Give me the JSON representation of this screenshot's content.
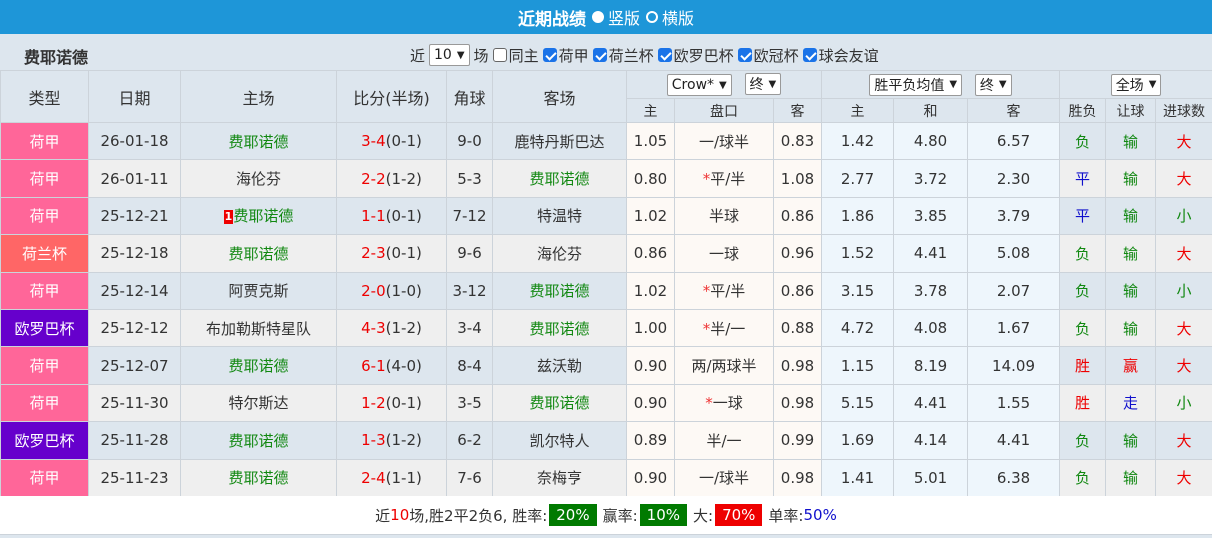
{
  "header": {
    "title": "近期战绩",
    "view_vertical": "竖版",
    "view_horizontal": "横版",
    "vertical_selected": true
  },
  "filter": {
    "team": "费耶诺德",
    "prefix": "近",
    "count": "10",
    "suffix": "场",
    "same_home": {
      "label": "同主",
      "checked": false
    },
    "competitions": [
      {
        "label": "荷甲",
        "checked": true
      },
      {
        "label": "荷兰杯",
        "checked": true
      },
      {
        "label": "欧罗巴杯",
        "checked": true
      },
      {
        "label": "欧冠杯",
        "checked": true
      },
      {
        "label": "球会友谊",
        "checked": true
      }
    ]
  },
  "columns": {
    "type": "类型",
    "date": "日期",
    "home": "主场",
    "score": "比分(半场)",
    "corners": "角球",
    "away": "客场",
    "asian_company": "Crow*",
    "asian_stage": "终",
    "euro_company": "胜平负均值",
    "euro_stage": "终",
    "scope": "全场",
    "asian_home": "主",
    "handicap": "盘口",
    "asian_away": "客",
    "euro_home": "主",
    "euro_draw": "和",
    "euro_away": "客",
    "result": "胜负",
    "ah_result": "让球",
    "goals": "进球数"
  },
  "colors": {
    "荷甲": "#ff6699",
    "荷兰杯": "#ff6666",
    "欧罗巴杯": "#6600cc",
    "team_highlight": "#118811",
    "score": "#ee0000"
  },
  "rows": [
    {
      "type": "荷甲",
      "date": "26-01-18",
      "home": "费耶诺德",
      "score": "3-4",
      "half": "(0-1)",
      "corners": "9-0",
      "away": "鹿特丹斯巴达",
      "ah": "1.05",
      "hc": "一/球半",
      "aa": "0.83",
      "eh": "1.42",
      "ed": "4.80",
      "ea": "6.57",
      "res": "负",
      "ahr": "输",
      "goals": "大",
      "team_side": "home"
    },
    {
      "type": "荷甲",
      "date": "26-01-11",
      "home": "海伦芬",
      "score": "2-2",
      "half": "(1-2)",
      "corners": "5-3",
      "away": "费耶诺德",
      "ah": "0.80",
      "hc": "平/半",
      "hc_star": true,
      "aa": "1.08",
      "eh": "2.77",
      "ed": "3.72",
      "ea": "2.30",
      "res": "平",
      "ahr": "输",
      "goals": "大",
      "team_side": "away"
    },
    {
      "type": "荷甲",
      "date": "25-12-21",
      "home": "费耶诺德",
      "home_rank": "1",
      "score": "1-1",
      "half": "(0-1)",
      "corners": "7-12",
      "away": "特温特",
      "ah": "1.02",
      "hc": "半球",
      "aa": "0.86",
      "eh": "1.86",
      "ed": "3.85",
      "ea": "3.79",
      "res": "平",
      "ahr": "输",
      "goals": "小",
      "team_side": "home"
    },
    {
      "type": "荷兰杯",
      "date": "25-12-18",
      "home": "费耶诺德",
      "score": "2-3",
      "half": "(0-1)",
      "corners": "9-6",
      "away": "海伦芬",
      "ah": "0.86",
      "hc": "一球",
      "aa": "0.96",
      "eh": "1.52",
      "ed": "4.41",
      "ea": "5.08",
      "res": "负",
      "ahr": "输",
      "goals": "大",
      "team_side": "home"
    },
    {
      "type": "荷甲",
      "date": "25-12-14",
      "home": "阿贾克斯",
      "score": "2-0",
      "half": "(1-0)",
      "corners": "3-12",
      "away": "费耶诺德",
      "ah": "1.02",
      "hc": "平/半",
      "hc_star": true,
      "aa": "0.86",
      "eh": "3.15",
      "ed": "3.78",
      "ea": "2.07",
      "res": "负",
      "ahr": "输",
      "goals": "小",
      "team_side": "away"
    },
    {
      "type": "欧罗巴杯",
      "date": "25-12-12",
      "home": "布加勒斯特星队",
      "score": "4-3",
      "half": "(1-2)",
      "corners": "3-4",
      "away": "费耶诺德",
      "ah": "1.00",
      "hc": "半/一",
      "hc_star": true,
      "aa": "0.88",
      "eh": "4.72",
      "ed": "4.08",
      "ea": "1.67",
      "res": "负",
      "ahr": "输",
      "goals": "大",
      "team_side": "away"
    },
    {
      "type": "荷甲",
      "date": "25-12-07",
      "home": "费耶诺德",
      "score": "6-1",
      "half": "(4-0)",
      "corners": "8-4",
      "away": "兹沃勒",
      "ah": "0.90",
      "hc": "两/两球半",
      "aa": "0.98",
      "eh": "1.15",
      "ed": "8.19",
      "ea": "14.09",
      "res": "胜",
      "ahr": "赢",
      "goals": "大",
      "team_side": "home"
    },
    {
      "type": "荷甲",
      "date": "25-11-30",
      "home": "特尔斯达",
      "score": "1-2",
      "half": "(0-1)",
      "corners": "3-5",
      "away": "费耶诺德",
      "ah": "0.90",
      "hc": "一球",
      "hc_star": true,
      "aa": "0.98",
      "eh": "5.15",
      "ed": "4.41",
      "ea": "1.55",
      "res": "胜",
      "ahr": "走",
      "goals": "小",
      "team_side": "away"
    },
    {
      "type": "欧罗巴杯",
      "date": "25-11-28",
      "home": "费耶诺德",
      "score": "1-3",
      "half": "(1-2)",
      "corners": "6-2",
      "away": "凯尔特人",
      "ah": "0.89",
      "hc": "半/一",
      "aa": "0.99",
      "eh": "1.69",
      "ed": "4.14",
      "ea": "4.41",
      "res": "负",
      "ahr": "输",
      "goals": "大",
      "team_side": "home"
    },
    {
      "type": "荷甲",
      "date": "25-11-23",
      "home": "费耶诺德",
      "score": "2-4",
      "half": "(1-1)",
      "corners": "7-6",
      "away": "奈梅亨",
      "ah": "0.90",
      "hc": "一/球半",
      "aa": "0.98",
      "eh": "1.41",
      "ed": "5.01",
      "ea": "6.38",
      "res": "负",
      "ahr": "输",
      "goals": "大",
      "team_side": "home"
    }
  ],
  "summary": {
    "prefix": "近",
    "count": "10",
    "text": "场,胜2平2负6, 胜率:",
    "win_rate": "20%",
    "ah_label": "赢率:",
    "ah_rate": "10%",
    "over_label": "大:",
    "over_rate": "70%",
    "odd_label": "单率:",
    "odd_rate": "50%"
  }
}
